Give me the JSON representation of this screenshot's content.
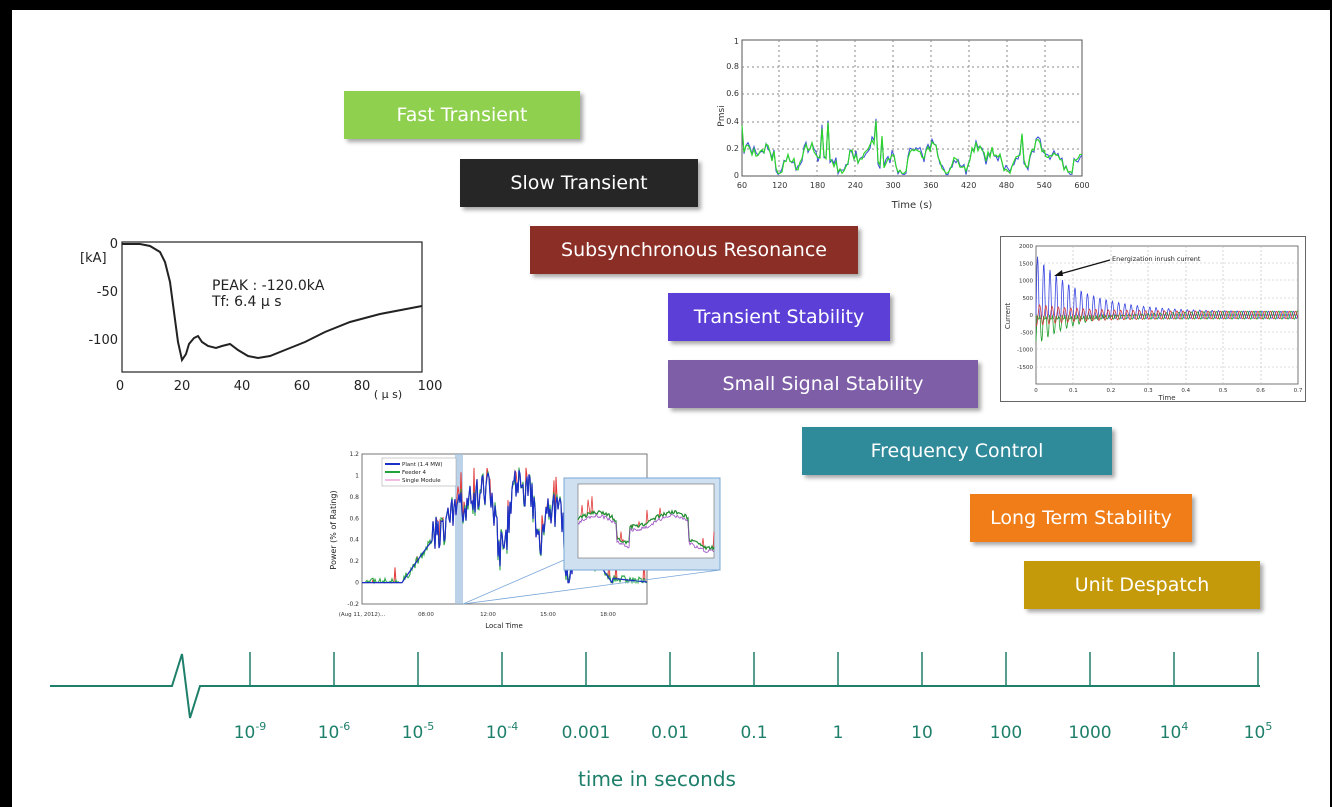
{
  "bands": [
    {
      "label": "Fast Transient",
      "color": "#8fd14f"
    },
    {
      "label": "Slow Transient",
      "color": "#262626"
    },
    {
      "label": "Subsynchronous Resonance",
      "color": "#8b2e26"
    },
    {
      "label": "Transient Stability",
      "color": "#5b3fd6"
    },
    {
      "label": "Small Signal Stability",
      "color": "#7e5ea6"
    },
    {
      "label": "Frequency Control",
      "color": "#2f8a9a"
    },
    {
      "label": "Long Term Stability",
      "color": "#f07d17"
    },
    {
      "label": "Unit Despatch",
      "color": "#c49a0a"
    }
  ],
  "timeline": {
    "ticks": [
      {
        "base": "10",
        "exp": "-9"
      },
      {
        "base": "10",
        "exp": "-6"
      },
      {
        "base": "10",
        "exp": "-5"
      },
      {
        "base": "10",
        "exp": "-4"
      },
      {
        "base": "0.001",
        "exp": ""
      },
      {
        "base": "0.01",
        "exp": ""
      },
      {
        "base": "0.1",
        "exp": ""
      },
      {
        "base": "1",
        "exp": ""
      },
      {
        "base": "10",
        "exp": ""
      },
      {
        "base": "100",
        "exp": ""
      },
      {
        "base": "1000",
        "exp": ""
      },
      {
        "base": "10",
        "exp": "4"
      },
      {
        "base": "10",
        "exp": "5"
      }
    ],
    "axis_label": "time in seconds",
    "color": "#1e7f6a"
  },
  "lightning_plot": {
    "y_unit": "[kA]",
    "y_ticks": [
      "0",
      "-50",
      "-100"
    ],
    "x_ticks": [
      "0",
      "20",
      "40",
      "60",
      "80",
      "100"
    ],
    "x_unit": "( μ s)",
    "annotation_peak": "PEAK : -120.0kA",
    "annotation_tf": "Tf: 6.4 μ s"
  },
  "pmu_plot": {
    "ylabel": "Pmsi",
    "xlabel": "Time (s)",
    "y_ticks": [
      "0",
      "0.2",
      "0.4",
      "0.6",
      "0.8",
      "1"
    ],
    "x_ticks": [
      "60",
      "120",
      "180",
      "240",
      "300",
      "360",
      "420",
      "480",
      "540",
      "600"
    ]
  },
  "current_plot": {
    "ylabel": "Current",
    "xlabel": "Time",
    "annotation": "Energization inrush current",
    "y_ticks": [
      "2000",
      "1500",
      "1000",
      "500",
      "0",
      "-500",
      "-1000",
      "-1500"
    ],
    "x_ticks": [
      "0",
      "0.1",
      "0.2",
      "0.3",
      "0.4",
      "0.5",
      "0.6",
      "0.7"
    ]
  },
  "solar_plot": {
    "ylabel": "Power (% of Rating)",
    "xlabel": "Local Time",
    "legend": [
      "Plant (1.4 MW)",
      "Feeder 4",
      "Single Module"
    ],
    "y_ticks": [
      "1.2",
      "1",
      "0.8",
      "0.6",
      "0.4",
      "0.2",
      "0",
      "-0.2"
    ],
    "x_ticks": [
      "(Aug 11, 2012)...",
      "08:00",
      "12:00",
      "15:00",
      "18:00"
    ]
  }
}
